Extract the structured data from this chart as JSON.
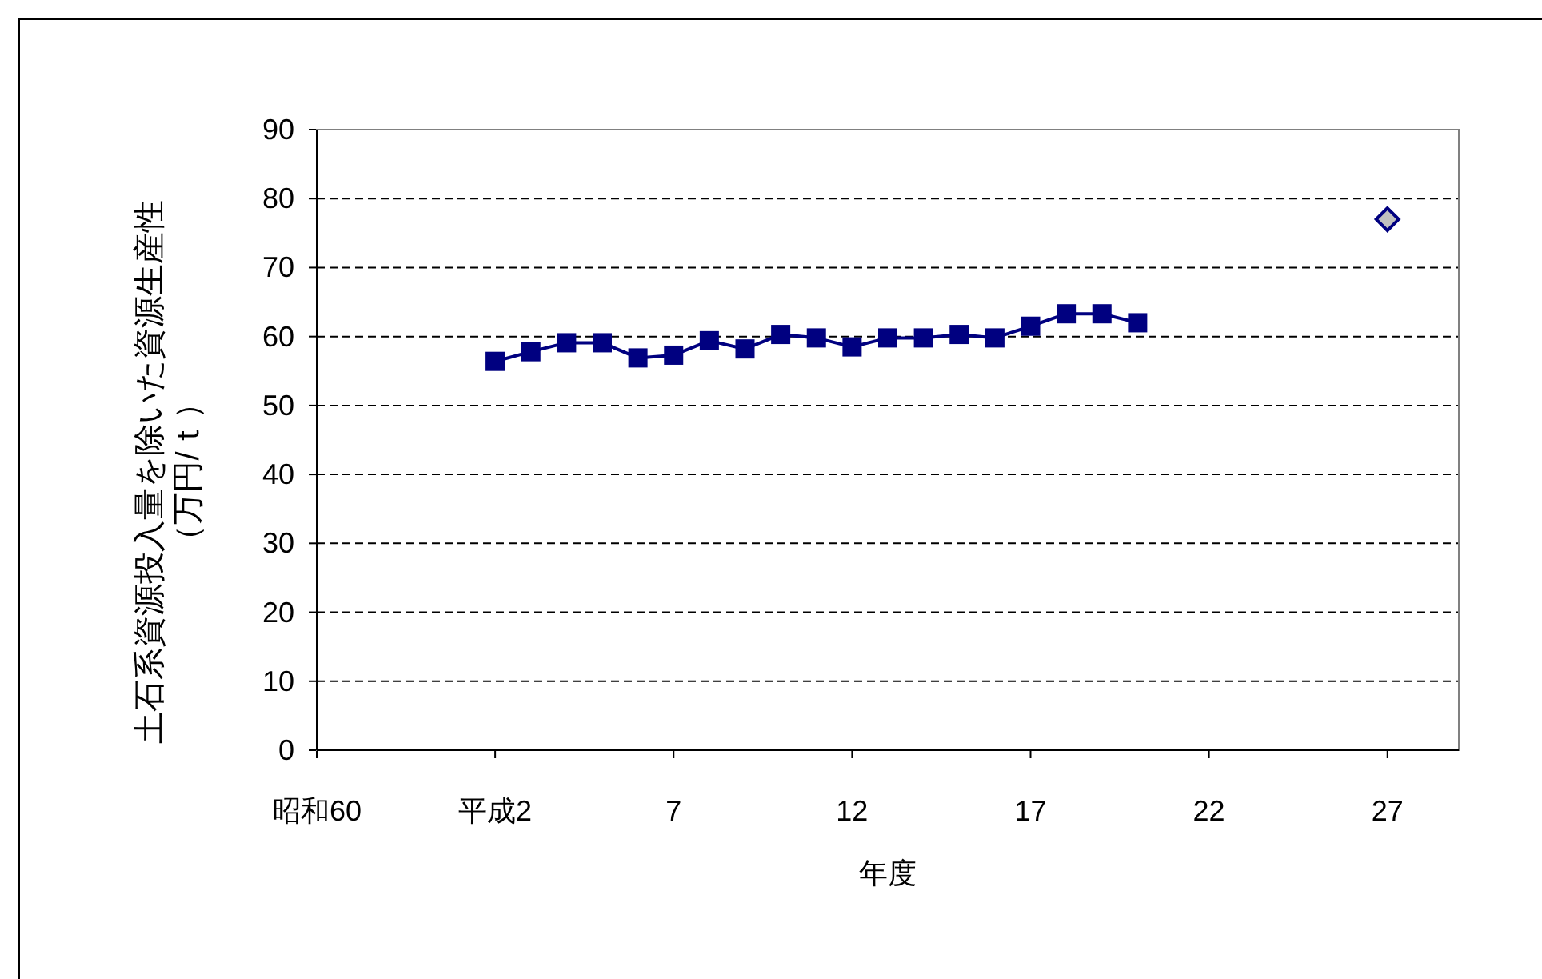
{
  "chart_data": {
    "type": "line",
    "xlabel": "年度",
    "ylabel": "土石系資源投入量を除いた資源生産性（万円/ｔ）",
    "xlim": [
      -3,
      29
    ],
    "xticks": [
      {
        "value": -3,
        "label": "昭和60"
      },
      {
        "value": 2,
        "label": "平成2"
      },
      7,
      12,
      17,
      22,
      27
    ],
    "ylim": [
      0,
      90
    ],
    "yticks": [
      0,
      10,
      20,
      30,
      40,
      50,
      60,
      70,
      80,
      90
    ],
    "grid": "y",
    "series": [
      {
        "type": "line",
        "color": "#000080",
        "marker": "square",
        "x": [
          2,
          3,
          4,
          5,
          6,
          7,
          8,
          9,
          10,
          11,
          12,
          13,
          14,
          15,
          16,
          17,
          18,
          19,
          20
        ],
        "values": [
          56.4,
          57.8,
          59.1,
          59.1,
          56.9,
          57.3,
          59.4,
          58.2,
          60.3,
          59.8,
          58.5,
          59.8,
          59.8,
          60.3,
          59.8,
          61.5,
          63.3,
          63.3,
          62.0
        ]
      },
      {
        "type": "scatter",
        "color": "#c0c0c0",
        "marker": "diamond",
        "x": [
          27
        ],
        "values": [
          77
        ]
      }
    ]
  }
}
